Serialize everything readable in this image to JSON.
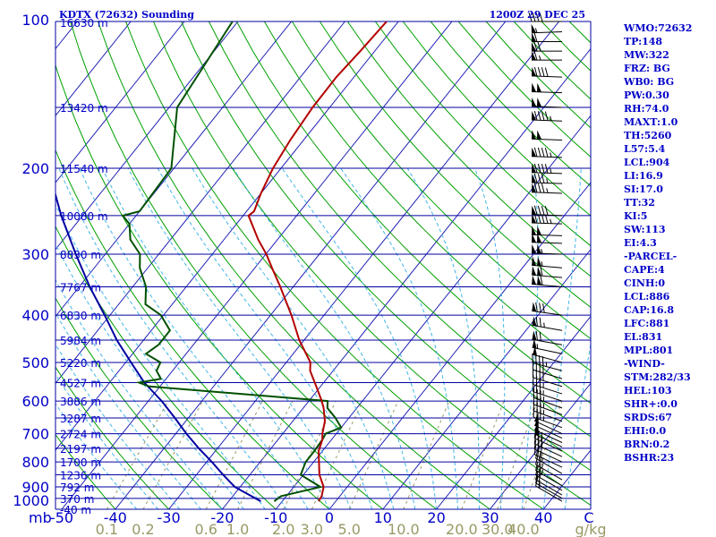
{
  "header": {
    "station": "KDTX (72632) Sounding",
    "valid": "1200Z 29 DEC 25"
  },
  "colors": {
    "background": "#ffffff",
    "isobar": "#0000a0",
    "isotherm": "#1c1cb4",
    "dry_adiabat": "#00a000",
    "moist_adiabat": "#41b6e6",
    "mixing_ratio": "#999966",
    "temperature": "#b40000",
    "dewpoint": "#005000",
    "parcel": "#0000a0",
    "label": "#0000c8",
    "wind": "#000000"
  },
  "indices": [
    "WMO:72632",
    "TP:148",
    "MW:322",
    "FRZ: BG",
    "WB0: BG",
    "PW:0.30",
    "RH:74.0",
    "MAXT:1.0",
    "TH:5260",
    "L57:5.4",
    "LCL:904",
    "LI:16.9",
    "SI:17.0",
    "TT:32",
    "KI:5",
    "SW:113",
    "EI:4.3",
    "-PARCEL-",
    "CAPE:4",
    "CINH:0",
    "LCL:886",
    "CAP:16.8",
    "LFC:881",
    "EL:831",
    "MPL:801",
    "-WIND-",
    "STM:282/33",
    "HEL:103",
    "SHR+:0.0",
    "SRDS:67",
    "EHI:0.0",
    "BRN:0.2",
    "BSHR:23"
  ],
  "chart_data": {
    "type": "skew-t",
    "title": "KDTX (72632) Sounding",
    "subtitle": "1200Z 29 DEC 25",
    "pressure_unit": "mb",
    "pressure_ticks": [
      100,
      200,
      300,
      400,
      500,
      600,
      700,
      800,
      900,
      1000
    ],
    "pressure_range": [
      100,
      1000
    ],
    "pressure_scale": "log",
    "temperature_ticks": [
      -50,
      -40,
      -30,
      -20,
      -10,
      0,
      10,
      20,
      30,
      40
    ],
    "temperature_unit": "C",
    "mixing_ratio_ticks": [
      "0.1",
      "0.2",
      "0.6",
      "1.0",
      "2.0",
      "3.0",
      "5.0",
      "10.0",
      "20.0",
      "30.0",
      "40.0"
    ],
    "mixing_ratio_unit": "g/kg",
    "heights": [
      {
        "p": 100,
        "label": "16630 m"
      },
      {
        "p": 150,
        "label": "13420 m"
      },
      {
        "p": 200,
        "label": "11540 m"
      },
      {
        "p": 250,
        "label": "10080 m"
      },
      {
        "p": 300,
        "label": "8830 m"
      },
      {
        "p": 350,
        "label": "7767 m"
      },
      {
        "p": 400,
        "label": "6830 m"
      },
      {
        "p": 450,
        "label": "5984 m"
      },
      {
        "p": 500,
        "label": "5220 m"
      },
      {
        "p": 550,
        "label": "4527 m"
      },
      {
        "p": 600,
        "label": "3886 m"
      },
      {
        "p": 650,
        "label": "3287 m"
      },
      {
        "p": 700,
        "label": "2724 m"
      },
      {
        "p": 750,
        "label": "2197 m"
      },
      {
        "p": 800,
        "label": "1700 m"
      },
      {
        "p": 850,
        "label": "1236 m"
      },
      {
        "p": 900,
        "label": "792 m"
      },
      {
        "p": 950,
        "label": "370 m"
      },
      {
        "p": 1000,
        "label": "-40 m"
      }
    ],
    "temperature": [
      {
        "p": 963,
        "t": -3.2
      },
      {
        "p": 940,
        "t": -3.4
      },
      {
        "p": 900,
        "t": -4.4
      },
      {
        "p": 850,
        "t": -7.0
      },
      {
        "p": 800,
        "t": -9.0
      },
      {
        "p": 760,
        "t": -10.7
      },
      {
        "p": 720,
        "t": -11.7
      },
      {
        "p": 700,
        "t": -12.6
      },
      {
        "p": 660,
        "t": -14.0
      },
      {
        "p": 620,
        "t": -16.2
      },
      {
        "p": 600,
        "t": -17.6
      },
      {
        "p": 560,
        "t": -20.8
      },
      {
        "p": 520,
        "t": -24.3
      },
      {
        "p": 500,
        "t": -25.5
      },
      {
        "p": 450,
        "t": -30.9
      },
      {
        "p": 400,
        "t": -36.1
      },
      {
        "p": 350,
        "t": -42.4
      },
      {
        "p": 320,
        "t": -46.8
      },
      {
        "p": 300,
        "t": -49.9
      },
      {
        "p": 280,
        "t": -53.6
      },
      {
        "p": 250,
        "t": -59.0
      },
      {
        "p": 245,
        "t": -58.6
      },
      {
        "p": 225,
        "t": -60.0
      },
      {
        "p": 200,
        "t": -61.5
      },
      {
        "p": 175,
        "t": -62.5
      },
      {
        "p": 150,
        "t": -63.2
      },
      {
        "p": 130,
        "t": -63.3
      },
      {
        "p": 115,
        "t": -62.7
      },
      {
        "p": 100,
        "t": -62.2
      }
    ],
    "dewpoint": [
      {
        "p": 963,
        "t": -11.5
      },
      {
        "p": 940,
        "t": -11.0
      },
      {
        "p": 900,
        "t": -5.0
      },
      {
        "p": 850,
        "t": -10.5
      },
      {
        "p": 800,
        "t": -11.5
      },
      {
        "p": 760,
        "t": -11.5
      },
      {
        "p": 720,
        "t": -11.7
      },
      {
        "p": 700,
        "t": -12.0
      },
      {
        "p": 680,
        "t": -10.0
      },
      {
        "p": 650,
        "t": -12.5
      },
      {
        "p": 620,
        "t": -15.5
      },
      {
        "p": 600,
        "t": -16.5
      },
      {
        "p": 560,
        "t": -52.0
      },
      {
        "p": 550,
        "t": -54.5
      },
      {
        "p": 540,
        "t": -51.0
      },
      {
        "p": 520,
        "t": -53.0
      },
      {
        "p": 500,
        "t": -53.5
      },
      {
        "p": 480,
        "t": -57.5
      },
      {
        "p": 460,
        "t": -56.5
      },
      {
        "p": 430,
        "t": -56.5
      },
      {
        "p": 400,
        "t": -60.5
      },
      {
        "p": 380,
        "t": -65.0
      },
      {
        "p": 350,
        "t": -67.5
      },
      {
        "p": 320,
        "t": -71.5
      },
      {
        "p": 300,
        "t": -73.5
      },
      {
        "p": 280,
        "t": -77.5
      },
      {
        "p": 260,
        "t": -80.0
      },
      {
        "p": 250,
        "t": -82.5
      },
      {
        "p": 245,
        "t": -80.0
      },
      {
        "p": 200,
        "t": -80.5
      },
      {
        "p": 150,
        "t": -88.5
      },
      {
        "p": 100,
        "t": -91.0
      }
    ],
    "parcel": [
      {
        "p": 963,
        "t": -14.0
      },
      {
        "p": 940,
        "t": -16.5
      },
      {
        "p": 900,
        "t": -21.0
      },
      {
        "p": 850,
        "t": -25.0
      },
      {
        "p": 800,
        "t": -29.0
      },
      {
        "p": 750,
        "t": -33.5
      },
      {
        "p": 700,
        "t": -38.0
      },
      {
        "p": 650,
        "t": -42.5
      },
      {
        "p": 600,
        "t": -47.5
      },
      {
        "p": 550,
        "t": -53.5
      },
      {
        "p": 500,
        "t": -59.0
      },
      {
        "p": 450,
        "t": -65.0
      },
      {
        "p": 400,
        "t": -71.0
      },
      {
        "p": 350,
        "t": -78.0
      },
      {
        "p": 300,
        "t": -85.5
      },
      {
        "p": 250,
        "t": -94.0
      },
      {
        "p": 200,
        "t": -103.5
      },
      {
        "p": 150,
        "t": -115.0
      },
      {
        "p": 100,
        "t": -130.0
      }
    ],
    "winds": [
      {
        "p": 100,
        "dir": 270,
        "spd": 40
      },
      {
        "p": 105,
        "dir": 268,
        "spd": 55
      },
      {
        "p": 110,
        "dir": 270,
        "spd": 60
      },
      {
        "p": 115,
        "dir": 270,
        "spd": 70
      },
      {
        "p": 120,
        "dir": 270,
        "spd": 65
      },
      {
        "p": 130,
        "dir": 272,
        "spd": 90
      },
      {
        "p": 140,
        "dir": 272,
        "spd": 100
      },
      {
        "p": 150,
        "dir": 272,
        "spd": 100
      },
      {
        "p": 160,
        "dir": 272,
        "spd": 95
      },
      {
        "p": 175,
        "dir": 272,
        "spd": 100
      },
      {
        "p": 190,
        "dir": 272,
        "spd": 95
      },
      {
        "p": 205,
        "dir": 272,
        "spd": 95
      },
      {
        "p": 215,
        "dir": 272,
        "spd": 85
      },
      {
        "p": 225,
        "dir": 272,
        "spd": 85
      },
      {
        "p": 250,
        "dir": 272,
        "spd": 90
      },
      {
        "p": 260,
        "dir": 272,
        "spd": 95
      },
      {
        "p": 275,
        "dir": 272,
        "spd": 100
      },
      {
        "p": 285,
        "dir": 272,
        "spd": 100
      },
      {
        "p": 300,
        "dir": 272,
        "spd": 105
      },
      {
        "p": 320,
        "dir": 275,
        "spd": 105
      },
      {
        "p": 335,
        "dir": 275,
        "spd": 110
      },
      {
        "p": 350,
        "dir": 275,
        "spd": 110
      },
      {
        "p": 400,
        "dir": 278,
        "spd": 80
      },
      {
        "p": 430,
        "dir": 280,
        "spd": 75
      },
      {
        "p": 460,
        "dir": 280,
        "spd": 70
      },
      {
        "p": 480,
        "dir": 282,
        "spd": 55
      },
      {
        "p": 500,
        "dir": 285,
        "spd": 50
      },
      {
        "p": 520,
        "dir": 285,
        "spd": 45
      },
      {
        "p": 540,
        "dir": 287,
        "spd": 40
      },
      {
        "p": 560,
        "dir": 287,
        "spd": 40
      },
      {
        "p": 580,
        "dir": 288,
        "spd": 35
      },
      {
        "p": 600,
        "dir": 288,
        "spd": 35
      },
      {
        "p": 620,
        "dir": 290,
        "spd": 35
      },
      {
        "p": 640,
        "dir": 290,
        "spd": 35
      },
      {
        "p": 660,
        "dir": 290,
        "spd": 35
      },
      {
        "p": 680,
        "dir": 290,
        "spd": 35
      },
      {
        "p": 700,
        "dir": 295,
        "spd": 50
      },
      {
        "p": 715,
        "dir": 295,
        "spd": 50
      },
      {
        "p": 730,
        "dir": 295,
        "spd": 50
      },
      {
        "p": 745,
        "dir": 295,
        "spd": 50
      },
      {
        "p": 760,
        "dir": 295,
        "spd": 30
      },
      {
        "p": 780,
        "dir": 295,
        "spd": 30
      },
      {
        "p": 800,
        "dir": 295,
        "spd": 30
      },
      {
        "p": 820,
        "dir": 295,
        "spd": 25
      },
      {
        "p": 845,
        "dir": 300,
        "spd": 25
      },
      {
        "p": 870,
        "dir": 300,
        "spd": 25
      },
      {
        "p": 895,
        "dir": 300,
        "spd": 25
      },
      {
        "p": 915,
        "dir": 300,
        "spd": 20
      },
      {
        "p": 935,
        "dir": 300,
        "spd": 20
      },
      {
        "p": 950,
        "dir": 300,
        "spd": 15
      },
      {
        "p": 963,
        "dir": 300,
        "spd": 15
      }
    ]
  }
}
